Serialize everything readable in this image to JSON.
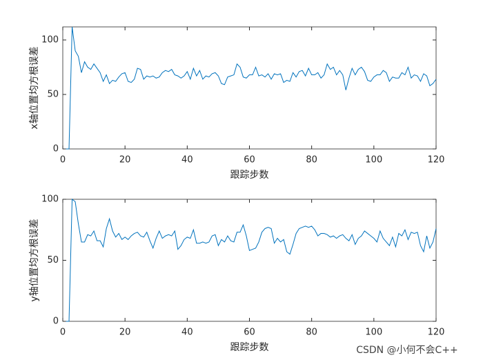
{
  "chart_data": [
    {
      "type": "line",
      "xlabel": "跟踪步数",
      "ylabel": "x轴位置均方根误差",
      "xlim": [
        0,
        120
      ],
      "ylim": [
        0,
        112
      ],
      "xticks": [
        0,
        20,
        40,
        60,
        80,
        100,
        120
      ],
      "yticks": [
        0,
        50,
        100
      ],
      "x": [
        1,
        2,
        3,
        4,
        5,
        6,
        7,
        8,
        9,
        10,
        11,
        12,
        13,
        14,
        15,
        16,
        17,
        18,
        19,
        20,
        21,
        22,
        23,
        24,
        25,
        26,
        27,
        28,
        29,
        30,
        31,
        32,
        33,
        34,
        35,
        36,
        37,
        38,
        39,
        40,
        41,
        42,
        43,
        44,
        45,
        46,
        47,
        48,
        49,
        50,
        51,
        52,
        53,
        54,
        55,
        56,
        57,
        58,
        59,
        60,
        61,
        62,
        63,
        64,
        65,
        66,
        67,
        68,
        69,
        70,
        71,
        72,
        73,
        74,
        75,
        76,
        77,
        78,
        79,
        80,
        81,
        82,
        83,
        84,
        85,
        86,
        87,
        88,
        89,
        90,
        91,
        92,
        93,
        94,
        95,
        96,
        97,
        98,
        99,
        100,
        101,
        102,
        103,
        104,
        105,
        106,
        107,
        108,
        109,
        110,
        111,
        112,
        113,
        114,
        115,
        116,
        117,
        118,
        119,
        120
      ],
      "series": [
        {
          "color": "#0072bd",
          "values": [
            0,
            0,
            112,
            90,
            85,
            70,
            80,
            75,
            73,
            78,
            74,
            70,
            62,
            68,
            60,
            63,
            62,
            66,
            69,
            70,
            62,
            61,
            64,
            74,
            73,
            64,
            67,
            66,
            67,
            65,
            66,
            70,
            72,
            71,
            73,
            68,
            67,
            65,
            67,
            71,
            64,
            74,
            67,
            72,
            64,
            67,
            66,
            69,
            70,
            67,
            60,
            59,
            66,
            67,
            68,
            78,
            75,
            66,
            65,
            68,
            68,
            75,
            67,
            68,
            66,
            69,
            64,
            69,
            68,
            69,
            61,
            63,
            62,
            70,
            66,
            71,
            72,
            67,
            74,
            68,
            68,
            70,
            65,
            68,
            78,
            73,
            75,
            68,
            72,
            68,
            54,
            65,
            74,
            68,
            73,
            75,
            71,
            63,
            62,
            66,
            68,
            68,
            72,
            70,
            62,
            66,
            65,
            65,
            70,
            68,
            75,
            65,
            68,
            67,
            62,
            69,
            67,
            58,
            60,
            64
          ]
        }
      ]
    },
    {
      "type": "line",
      "xlabel": "跟踪步数",
      "ylabel": "y轴位置均方根误差",
      "xlim": [
        0,
        120
      ],
      "ylim": [
        0,
        100
      ],
      "xticks": [
        0,
        20,
        40,
        60,
        80,
        100,
        120
      ],
      "yticks": [
        0,
        50,
        100
      ],
      "x": [
        1,
        2,
        3,
        4,
        5,
        6,
        7,
        8,
        9,
        10,
        11,
        12,
        13,
        14,
        15,
        16,
        17,
        18,
        19,
        20,
        21,
        22,
        23,
        24,
        25,
        26,
        27,
        28,
        29,
        30,
        31,
        32,
        33,
        34,
        35,
        36,
        37,
        38,
        39,
        40,
        41,
        42,
        43,
        44,
        45,
        46,
        47,
        48,
        49,
        50,
        51,
        52,
        53,
        54,
        55,
        56,
        57,
        58,
        59,
        60,
        61,
        62,
        63,
        64,
        65,
        66,
        67,
        68,
        69,
        70,
        71,
        72,
        73,
        74,
        75,
        76,
        77,
        78,
        79,
        80,
        81,
        82,
        83,
        84,
        85,
        86,
        87,
        88,
        89,
        90,
        91,
        92,
        93,
        94,
        95,
        96,
        97,
        98,
        99,
        100,
        101,
        102,
        103,
        104,
        105,
        106,
        107,
        108,
        109,
        110,
        111,
        112,
        113,
        114,
        115,
        116,
        117,
        118,
        119,
        120
      ],
      "series": [
        {
          "color": "#0072bd",
          "values": [
            0,
            0,
            100,
            98,
            80,
            65,
            65,
            71,
            70,
            74,
            66,
            66,
            61,
            76,
            84,
            74,
            69,
            72,
            67,
            69,
            67,
            70,
            72,
            73,
            70,
            69,
            73,
            66,
            60,
            68,
            74,
            68,
            70,
            71,
            70,
            74,
            59,
            62,
            67,
            69,
            68,
            75,
            64,
            64,
            65,
            64,
            65,
            70,
            71,
            62,
            67,
            65,
            70,
            66,
            65,
            73,
            73,
            79,
            70,
            58,
            59,
            60,
            65,
            73,
            76,
            77,
            76,
            64,
            68,
            65,
            67,
            57,
            55,
            63,
            72,
            76,
            77,
            78,
            77,
            78,
            75,
            70,
            72,
            72,
            71,
            69,
            70,
            68,
            70,
            71,
            68,
            66,
            71,
            63,
            68,
            70,
            74,
            72,
            70,
            68,
            65,
            74,
            68,
            65,
            62,
            69,
            61,
            72,
            70,
            75,
            67,
            73,
            72,
            73,
            62,
            57,
            70,
            60,
            65,
            76
          ]
        }
      ]
    }
  ],
  "watermark": "CSDN @小何不会C++"
}
